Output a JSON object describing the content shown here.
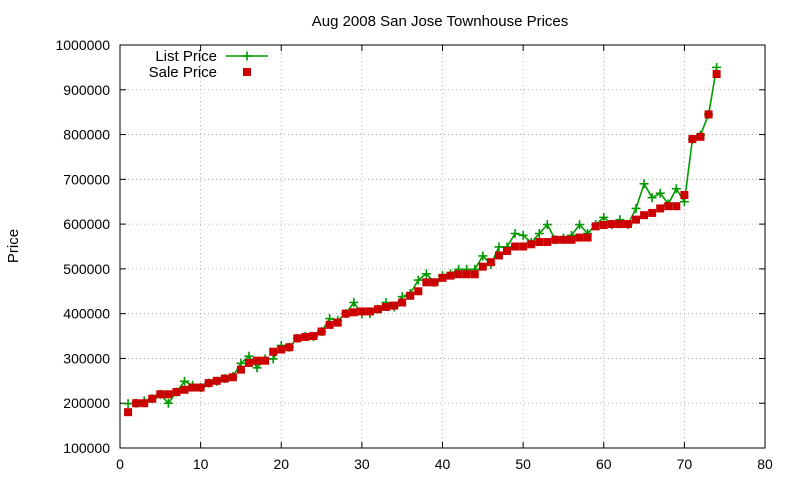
{
  "chart_data": {
    "type": "line",
    "title": "Aug 2008 San Jose Townhouse Prices",
    "xlabel": "",
    "ylabel": "Price",
    "xlim": [
      0,
      80
    ],
    "ylim": [
      100000,
      1000000
    ],
    "xticks": [
      0,
      10,
      20,
      30,
      40,
      50,
      60,
      70,
      80
    ],
    "yticks": [
      100000,
      200000,
      300000,
      400000,
      500000,
      600000,
      700000,
      800000,
      900000,
      1000000
    ],
    "grid": true,
    "legend_position": "top-left",
    "x": [
      1,
      2,
      3,
      4,
      5,
      6,
      7,
      8,
      9,
      10,
      11,
      12,
      13,
      14,
      15,
      16,
      17,
      18,
      19,
      20,
      21,
      22,
      23,
      24,
      25,
      26,
      27,
      28,
      29,
      30,
      31,
      32,
      33,
      34,
      35,
      36,
      37,
      38,
      39,
      40,
      41,
      42,
      43,
      44,
      45,
      46,
      47,
      48,
      49,
      50,
      51,
      52,
      53,
      54,
      55,
      56,
      57,
      58,
      59,
      60,
      61,
      62,
      63,
      64,
      65,
      66,
      67,
      68,
      69,
      70,
      71,
      72,
      73,
      74
    ],
    "series": [
      {
        "name": "List Price",
        "style": "line+cross",
        "color": "#009900",
        "values": [
          199000,
          200000,
          205000,
          210000,
          220000,
          200000,
          225000,
          249000,
          240000,
          235000,
          245000,
          249000,
          255000,
          260000,
          289000,
          305000,
          279000,
          299000,
          299000,
          329000,
          325000,
          345000,
          349000,
          349000,
          360000,
          389000,
          385000,
          400000,
          425000,
          399000,
          400000,
          410000,
          425000,
          415000,
          438000,
          445000,
          475000,
          489000,
          470000,
          485000,
          489000,
          499000,
          499000,
          499000,
          529000,
          510000,
          549000,
          549000,
          579000,
          575000,
          559000,
          579000,
          599000,
          565000,
          569000,
          575000,
          599000,
          579000,
          599000,
          615000,
          599000,
          610000,
          599000,
          635000,
          690000,
          659000,
          669000,
          645000,
          679000,
          650000,
          789000,
          799000,
          845000,
          950000
        ]
      },
      {
        "name": "Sale Price",
        "style": "square",
        "color": "#cc0000",
        "values": [
          180000,
          200000,
          200000,
          210000,
          220000,
          220000,
          225000,
          230000,
          235000,
          235000,
          245000,
          250000,
          255000,
          258000,
          275000,
          290000,
          295000,
          295000,
          315000,
          320000,
          325000,
          345000,
          348000,
          350000,
          360000,
          375000,
          380000,
          400000,
          403000,
          405000,
          405000,
          410000,
          415000,
          418000,
          425000,
          440000,
          450000,
          470000,
          470000,
          480000,
          485000,
          488000,
          488000,
          488000,
          505000,
          515000,
          530000,
          540000,
          550000,
          550000,
          555000,
          560000,
          560000,
          565000,
          565000,
          565000,
          570000,
          570000,
          595000,
          598000,
          600000,
          600000,
          600000,
          610000,
          620000,
          625000,
          635000,
          640000,
          640000,
          665000,
          790000,
          795000,
          845000,
          935000
        ]
      }
    ]
  }
}
